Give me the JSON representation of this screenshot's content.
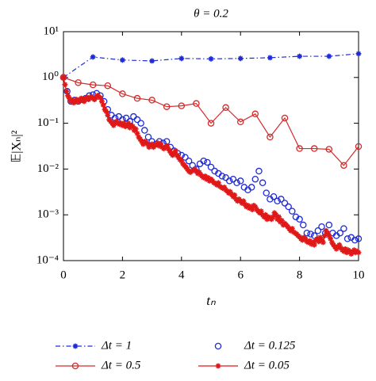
{
  "chart_data": {
    "type": "line",
    "title": "θ = 0.2",
    "xlabel": "tₙ",
    "ylabel": "𝔼|Xₙ|²",
    "xlim": [
      0,
      10
    ],
    "xticks": [
      0,
      2,
      4,
      6,
      8,
      10
    ],
    "ylim": [
      0.0001,
      10
    ],
    "yscale": "log",
    "yticks": [
      {
        "value": 0.0001,
        "label": "10⁻⁴"
      },
      {
        "value": 0.001,
        "label": "10⁻³"
      },
      {
        "value": 0.01,
        "label": "10⁻²"
      },
      {
        "value": 0.1,
        "label": "10⁻¹"
      },
      {
        "value": 1,
        "label": "10⁰"
      },
      {
        "value": 10,
        "label": "10¹"
      }
    ],
    "series": [
      {
        "name": "Δt = 1",
        "color": "#1f2bd6",
        "marker": "asterisk",
        "line": "dashdot",
        "x": [
          0,
          1,
          2,
          3,
          4,
          5,
          6,
          7,
          8,
          9,
          10
        ],
        "values": [
          1,
          2.8,
          2.4,
          2.3,
          2.6,
          2.55,
          2.6,
          2.7,
          2.9,
          2.9,
          3.3
        ]
      },
      {
        "name": "Δt = 0.125",
        "color": "#1f2bd6",
        "marker": "circle",
        "line": "none",
        "x": [
          0,
          0.125,
          0.25,
          0.375,
          0.5,
          0.625,
          0.75,
          0.875,
          1,
          1.125,
          1.25,
          1.375,
          1.5,
          1.625,
          1.75,
          1.875,
          2,
          2.125,
          2.25,
          2.375,
          2.5,
          2.625,
          2.75,
          2.875,
          3,
          3.125,
          3.25,
          3.375,
          3.5,
          3.625,
          3.75,
          3.875,
          4,
          4.125,
          4.25,
          4.375,
          4.5,
          4.625,
          4.75,
          4.875,
          5,
          5.125,
          5.25,
          5.375,
          5.5,
          5.625,
          5.75,
          5.875,
          6,
          6.125,
          6.25,
          6.375,
          6.5,
          6.625,
          6.75,
          6.875,
          7,
          7.125,
          7.25,
          7.375,
          7.5,
          7.625,
          7.75,
          7.875,
          8,
          8.125,
          8.25,
          8.375,
          8.5,
          8.625,
          8.75,
          8.875,
          9,
          9.125,
          9.25,
          9.375,
          9.5,
          9.625,
          9.75,
          9.875,
          10
        ],
        "values": [
          1,
          0.5,
          0.3,
          0.32,
          0.3,
          0.33,
          0.35,
          0.4,
          0.42,
          0.45,
          0.4,
          0.3,
          0.2,
          0.15,
          0.13,
          0.14,
          0.12,
          0.13,
          0.11,
          0.14,
          0.12,
          0.1,
          0.07,
          0.05,
          0.04,
          0.035,
          0.04,
          0.037,
          0.04,
          0.03,
          0.025,
          0.022,
          0.02,
          0.018,
          0.015,
          0.012,
          0.01,
          0.013,
          0.015,
          0.014,
          0.011,
          0.009,
          0.008,
          0.007,
          0.0065,
          0.0055,
          0.006,
          0.005,
          0.0055,
          0.004,
          0.0035,
          0.004,
          0.006,
          0.009,
          0.005,
          0.003,
          0.0022,
          0.0025,
          0.002,
          0.0022,
          0.0018,
          0.0015,
          0.0012,
          0.0009,
          0.0008,
          0.0006,
          0.0004,
          0.00038,
          0.00035,
          0.00045,
          0.00055,
          0.0004,
          0.0006,
          0.0004,
          0.00035,
          0.0004,
          0.0005,
          0.0003,
          0.00032,
          0.00028,
          0.0003
        ]
      },
      {
        "name": "Δt = 0.5",
        "color": "#d42a2a",
        "marker": "circle",
        "line": "solid",
        "x": [
          0,
          0.5,
          1,
          1.5,
          2,
          2.5,
          3,
          3.5,
          4,
          4.5,
          5,
          5.5,
          6,
          6.5,
          7,
          7.5,
          8,
          8.5,
          9,
          9.5,
          10
        ],
        "values": [
          1,
          0.77,
          0.69,
          0.66,
          0.44,
          0.35,
          0.32,
          0.23,
          0.24,
          0.27,
          0.1,
          0.22,
          0.107,
          0.16,
          0.05,
          0.13,
          0.028,
          0.028,
          0.027,
          0.012,
          0.031
        ]
      },
      {
        "name": "Δt = 0.05",
        "color": "#e01818",
        "marker": "asterisk",
        "line": "solid",
        "x": [
          0,
          0.05,
          0.1,
          0.15,
          0.2,
          0.25,
          0.3,
          0.35,
          0.4,
          0.45,
          0.5,
          0.55,
          0.6,
          0.65,
          0.7,
          0.75,
          0.8,
          0.85,
          0.9,
          0.95,
          1,
          1.05,
          1.1,
          1.15,
          1.2,
          1.25,
          1.3,
          1.35,
          1.4,
          1.45,
          1.5,
          1.55,
          1.6,
          1.65,
          1.7,
          1.75,
          1.8,
          1.85,
          1.9,
          1.95,
          2,
          2.05,
          2.1,
          2.15,
          2.2,
          2.25,
          2.3,
          2.35,
          2.4,
          2.45,
          2.5,
          2.55,
          2.6,
          2.65,
          2.7,
          2.75,
          2.8,
          2.85,
          2.9,
          2.95,
          3,
          3.05,
          3.1,
          3.15,
          3.2,
          3.25,
          3.3,
          3.35,
          3.4,
          3.45,
          3.5,
          3.55,
          3.6,
          3.65,
          3.7,
          3.75,
          3.8,
          3.85,
          3.9,
          3.95,
          4,
          4.05,
          4.1,
          4.15,
          4.2,
          4.25,
          4.3,
          4.35,
          4.4,
          4.45,
          4.5,
          4.55,
          4.6,
          4.65,
          4.7,
          4.75,
          4.8,
          4.85,
          4.9,
          4.95,
          5,
          5.05,
          5.1,
          5.15,
          5.2,
          5.25,
          5.3,
          5.35,
          5.4,
          5.45,
          5.5,
          5.55,
          5.6,
          5.65,
          5.7,
          5.75,
          5.8,
          5.85,
          5.9,
          5.95,
          6,
          6.05,
          6.1,
          6.15,
          6.2,
          6.25,
          6.3,
          6.35,
          6.4,
          6.45,
          6.5,
          6.55,
          6.6,
          6.65,
          6.7,
          6.75,
          6.8,
          6.85,
          6.9,
          6.95,
          7,
          7.05,
          7.1,
          7.15,
          7.2,
          7.25,
          7.3,
          7.35,
          7.4,
          7.45,
          7.5,
          7.55,
          7.6,
          7.65,
          7.7,
          7.75,
          7.8,
          7.85,
          7.9,
          7.95,
          8,
          8.05,
          8.1,
          8.15,
          8.2,
          8.25,
          8.3,
          8.35,
          8.4,
          8.45,
          8.5,
          8.55,
          8.6,
          8.65,
          8.7,
          8.75,
          8.8,
          8.85,
          8.9,
          8.95,
          9,
          9.05,
          9.1,
          9.15,
          9.2,
          9.25,
          9.3,
          9.35,
          9.4,
          9.45,
          9.5,
          9.55,
          9.6,
          9.65,
          9.7,
          9.75,
          9.8,
          9.85,
          9.9,
          9.95,
          10
        ],
        "values": [
          1,
          0.7,
          0.5,
          0.4,
          0.35,
          0.3,
          0.32,
          0.28,
          0.3,
          0.33,
          0.3,
          0.32,
          0.35,
          0.33,
          0.3,
          0.35,
          0.37,
          0.33,
          0.36,
          0.38,
          0.35,
          0.33,
          0.36,
          0.4,
          0.38,
          0.36,
          0.3,
          0.25,
          0.2,
          0.18,
          0.15,
          0.12,
          0.11,
          0.1,
          0.09,
          0.1,
          0.11,
          0.1,
          0.095,
          0.1,
          0.09,
          0.1,
          0.085,
          0.09,
          0.1,
          0.08,
          0.09,
          0.085,
          0.07,
          0.075,
          0.06,
          0.05,
          0.045,
          0.04,
          0.035,
          0.04,
          0.038,
          0.035,
          0.03,
          0.033,
          0.035,
          0.03,
          0.033,
          0.035,
          0.037,
          0.032,
          0.035,
          0.03,
          0.028,
          0.03,
          0.032,
          0.028,
          0.025,
          0.022,
          0.02,
          0.022,
          0.025,
          0.02,
          0.018,
          0.016,
          0.015,
          0.013,
          0.012,
          0.011,
          0.01,
          0.009,
          0.0085,
          0.009,
          0.0095,
          0.01,
          0.009,
          0.008,
          0.0085,
          0.0075,
          0.007,
          0.0065,
          0.007,
          0.006,
          0.0065,
          0.0055,
          0.006,
          0.0055,
          0.005,
          0.0048,
          0.0045,
          0.005,
          0.0042,
          0.004,
          0.0038,
          0.004,
          0.0035,
          0.0033,
          0.003,
          0.0032,
          0.0028,
          0.0025,
          0.0027,
          0.0022,
          0.002,
          0.0022,
          0.002,
          0.0018,
          0.002,
          0.0017,
          0.0015,
          0.0016,
          0.0014,
          0.0015,
          0.0013,
          0.0016,
          0.0015,
          0.0013,
          0.0012,
          0.0011,
          0.0012,
          0.001,
          0.0009,
          0.001,
          0.0008,
          0.0009,
          0.00085,
          0.0008,
          0.0009,
          0.0011,
          0.001,
          0.0008,
          0.0009,
          0.0007,
          0.00075,
          0.0006,
          0.00065,
          0.0006,
          0.00055,
          0.0005,
          0.00045,
          0.0005,
          0.00042,
          0.0004,
          0.00038,
          0.00035,
          0.00033,
          0.0003,
          0.00028,
          0.00032,
          0.0003,
          0.00026,
          0.00025,
          0.00027,
          0.00023,
          0.00025,
          0.00022,
          0.00028,
          0.0003,
          0.00026,
          0.00032,
          0.00028,
          0.00025,
          0.00035,
          0.00045,
          0.0004,
          0.00035,
          0.0003,
          0.00025,
          0.00022,
          0.0002,
          0.00018,
          0.0002,
          0.00022,
          0.00019,
          0.00017,
          0.00016,
          0.00018,
          0.00015,
          0.00017,
          0.00016,
          0.00014,
          0.00015,
          0.00017,
          0.00015,
          0.00016,
          0.00015
        ]
      }
    ]
  }
}
